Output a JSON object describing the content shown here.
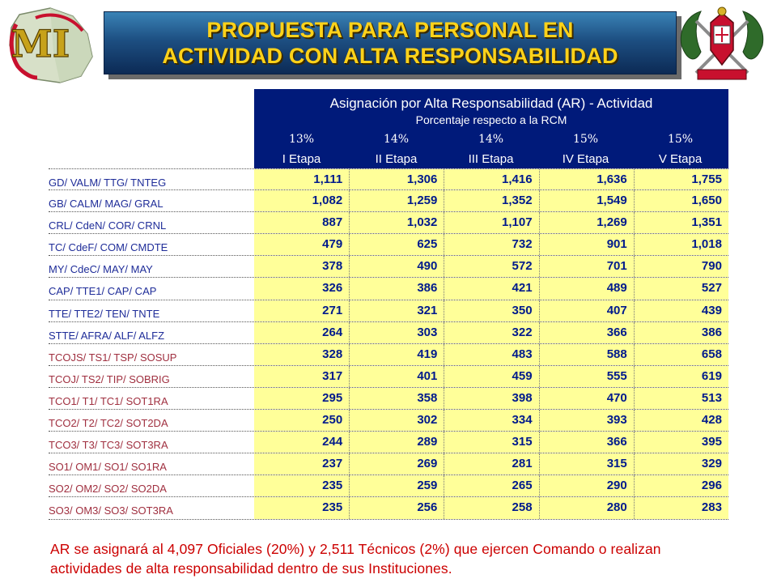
{
  "header": {
    "title_line1": "PROPUESTA PARA PERSONAL EN",
    "title_line2": "ACTIVIDAD CON ALTA RESPONSABILIDAD",
    "logo_left_text": "MI",
    "logo_left_icon": "peru-map-emblem",
    "logo_right_icon": "military-crest-emblem"
  },
  "table": {
    "title": "Asignación por Alta Responsabilidad (AR) - Actividad",
    "subtitle": "Porcentaje respecto a la RCM",
    "percentages": [
      "13%",
      "14%",
      "14%",
      "15%",
      "15%"
    ],
    "stages": [
      "I Etapa",
      "II Etapa",
      "III Etapa",
      "IV Etapa",
      "V Etapa"
    ],
    "rows": [
      {
        "rank": "GD/ VALM/ TTG/ TNTEG",
        "group": "off",
        "values": [
          "1,111",
          "1,306",
          "1,416",
          "1,636",
          "1,755"
        ]
      },
      {
        "rank": "GB/ CALM/ MAG/ GRAL",
        "group": "off",
        "values": [
          "1,082",
          "1,259",
          "1,352",
          "1,549",
          "1,650"
        ]
      },
      {
        "rank": "CRL/ CdeN/ COR/ CRNL",
        "group": "off",
        "values": [
          "887",
          "1,032",
          "1,107",
          "1,269",
          "1,351"
        ]
      },
      {
        "rank": "TC/ CdeF/ COM/ CMDTE",
        "group": "off",
        "values": [
          "479",
          "625",
          "732",
          "901",
          "1,018"
        ]
      },
      {
        "rank": "MY/ CdeC/ MAY/ MAY",
        "group": "off",
        "values": [
          "378",
          "490",
          "572",
          "701",
          "790"
        ]
      },
      {
        "rank": "CAP/ TTE1/ CAP/ CAP",
        "group": "off",
        "values": [
          "326",
          "386",
          "421",
          "489",
          "527"
        ]
      },
      {
        "rank": "TTE/ TTE2/ TEN/ TNTE",
        "group": "off",
        "values": [
          "271",
          "321",
          "350",
          "407",
          "439"
        ]
      },
      {
        "rank": "STTE/ AFRA/ ALF/ ALFZ",
        "group": "off",
        "values": [
          "264",
          "303",
          "322",
          "366",
          "386"
        ]
      },
      {
        "rank": "TCOJS/ TS1/ TSP/ SOSUP",
        "group": "tec",
        "values": [
          "328",
          "419",
          "483",
          "588",
          "658"
        ]
      },
      {
        "rank": "TCOJ/ TS2/ TIP/ SOBRIG",
        "group": "tec",
        "values": [
          "317",
          "401",
          "459",
          "555",
          "619"
        ]
      },
      {
        "rank": "TCO1/ T1/ TC1/ SOT1RA",
        "group": "tec",
        "values": [
          "295",
          "358",
          "398",
          "470",
          "513"
        ]
      },
      {
        "rank": "TCO2/ T2/ TC2/ SOT2DA",
        "group": "tec",
        "values": [
          "250",
          "302",
          "334",
          "393",
          "428"
        ]
      },
      {
        "rank": "TCO3/ T3/ TC3/ SOT3RA",
        "group": "tec",
        "values": [
          "244",
          "289",
          "315",
          "366",
          "395"
        ]
      },
      {
        "rank": "SO1/ OM1/ SO1/ SO1RA",
        "group": "tec",
        "values": [
          "237",
          "269",
          "281",
          "315",
          "329"
        ]
      },
      {
        "rank": "SO2/ OM2/ SO2/ SO2DA",
        "group": "tec",
        "values": [
          "235",
          "259",
          "265",
          "290",
          "296"
        ]
      },
      {
        "rank": "SO3/ OM3/ SO3/ SOT3RA",
        "group": "tec",
        "values": [
          "235",
          "256",
          "258",
          "280",
          "283"
        ]
      }
    ]
  },
  "footnote": "AR se asignará al 4,097 Oficiales (20%) y 2,511 Técnicos (2%) que ejercen Comando o realizan actividades de alta responsabilidad dentro de sus Instituciones.",
  "colors": {
    "title_text": "#ffd21a",
    "header_bg": "#001a7a",
    "cell_bg": "#ffff99",
    "value_text": "#001a8c",
    "officer_rank_text": "#1f2d99",
    "technician_rank_text": "#a03040",
    "footnote_text": "#cc0000"
  }
}
